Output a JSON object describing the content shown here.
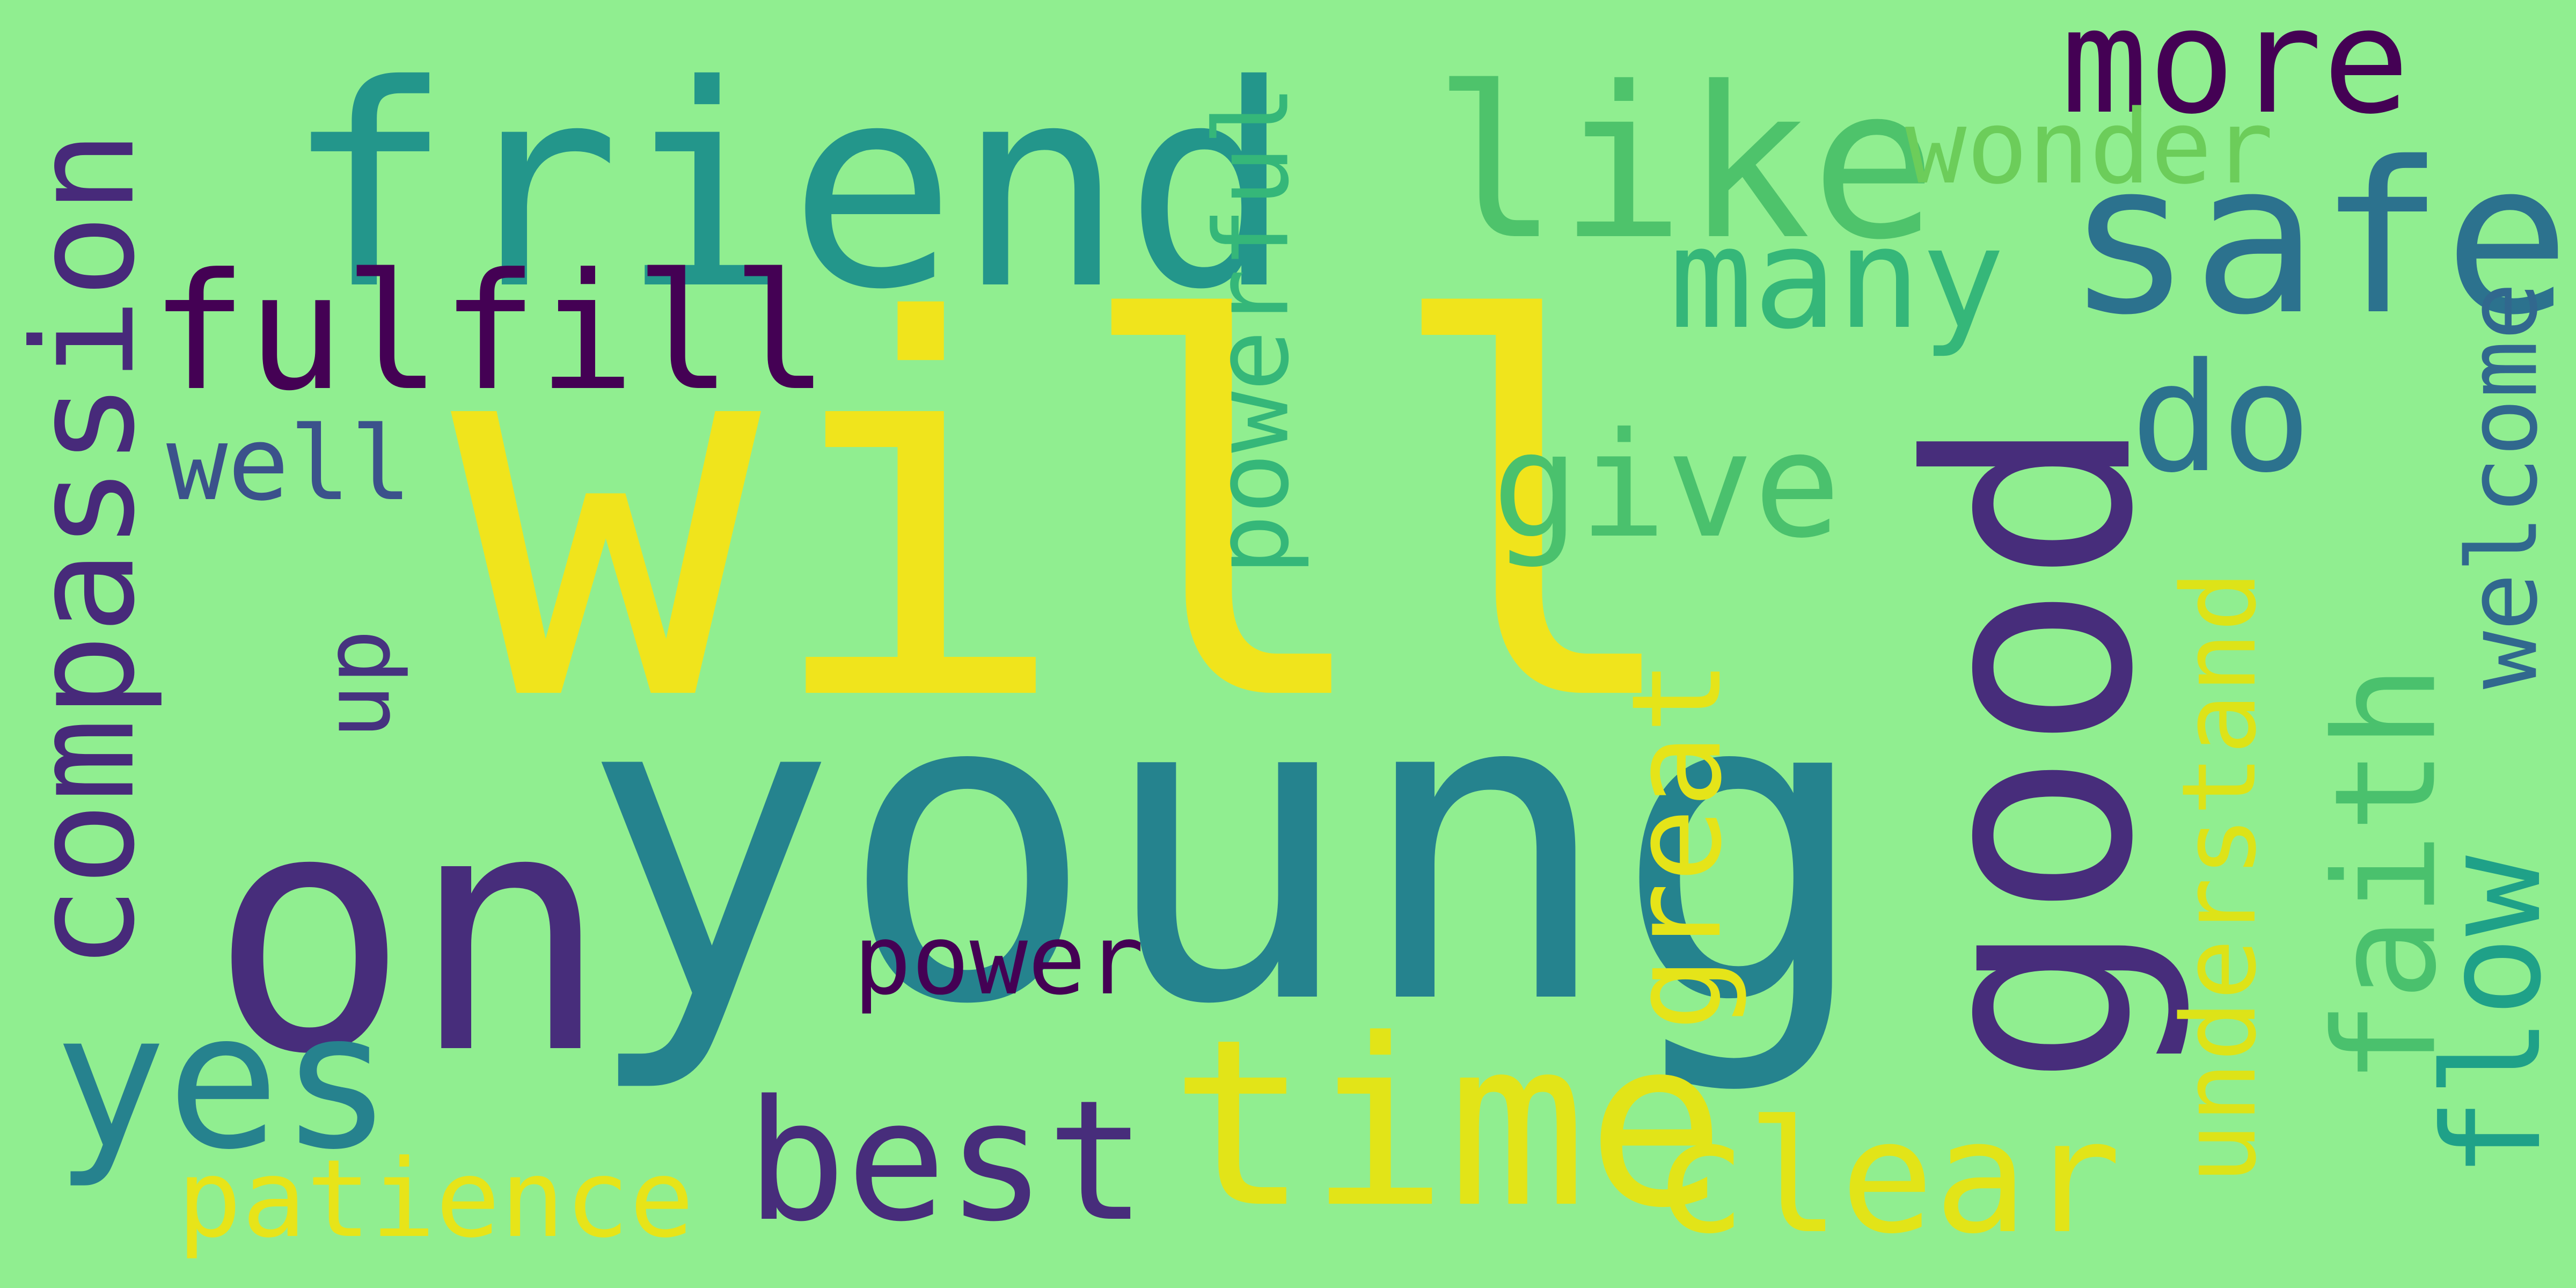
{
  "background": "#90ee90",
  "words": [
    {
      "id": "will",
      "text": "will",
      "color": "#f0e41c"
    },
    {
      "id": "young",
      "text": "young",
      "color": "#25838e"
    },
    {
      "id": "on",
      "text": "on",
      "color": "#472d7b"
    },
    {
      "id": "friend",
      "text": "friend",
      "color": "#23968b"
    },
    {
      "id": "good",
      "text": "good",
      "color": "#472d7b"
    },
    {
      "id": "compassion",
      "text": "compassion",
      "color": "#472a7a"
    },
    {
      "id": "time",
      "text": "time",
      "color": "#e2e418"
    },
    {
      "id": "fulfill",
      "text": "fulfill",
      "color": "#440154"
    },
    {
      "id": "like",
      "text": "like",
      "color": "#4ec36b"
    },
    {
      "id": "safe",
      "text": "safe",
      "color": "#2c728e"
    },
    {
      "id": "yes",
      "text": "yes",
      "color": "#26828e"
    },
    {
      "id": "more",
      "text": "more",
      "color": "#440154"
    },
    {
      "id": "many",
      "text": "many",
      "color": "#35b779"
    },
    {
      "id": "best",
      "text": "best",
      "color": "#472d7b"
    },
    {
      "id": "clear",
      "text": "clear",
      "color": "#e2e418"
    },
    {
      "id": "give",
      "text": "give",
      "color": "#4ac16d"
    },
    {
      "id": "do",
      "text": "do",
      "color": "#2c728e"
    },
    {
      "id": "powerful",
      "text": "powerful",
      "color": "#35b779"
    },
    {
      "id": "great",
      "text": "great",
      "color": "#e5e419"
    },
    {
      "id": "faith",
      "text": "faith",
      "color": "#4ac16d"
    },
    {
      "id": "flow",
      "text": "flow",
      "color": "#1fa188"
    },
    {
      "id": "understand",
      "text": "understand",
      "color": "#dde318"
    },
    {
      "id": "welcome",
      "text": "welcome",
      "color": "#31688e"
    },
    {
      "id": "wonder",
      "text": "wonder",
      "color": "#6ccd5a"
    },
    {
      "id": "patience",
      "text": "patience",
      "color": "#e7e419"
    },
    {
      "id": "power",
      "text": "power",
      "color": "#440154"
    },
    {
      "id": "well",
      "text": "well",
      "color": "#3b528b"
    },
    {
      "id": "up",
      "text": "up",
      "color": "#46337f"
    }
  ]
}
